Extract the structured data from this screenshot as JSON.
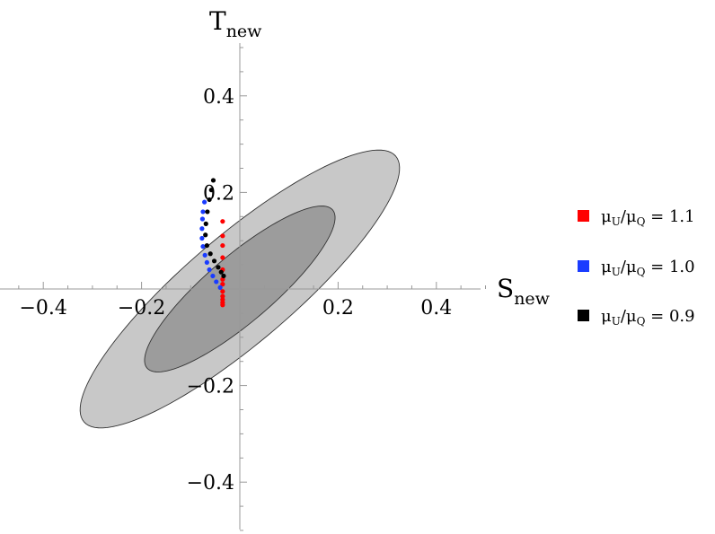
{
  "chart_data": {
    "type": "scatter",
    "x_axis": {
      "label_main": "S",
      "label_sub": "new",
      "range": [
        -0.5,
        0.5
      ],
      "ticks": [
        -0.4,
        -0.2,
        0.2,
        0.4
      ],
      "tick_labels": [
        "−0.4",
        "−0.2",
        "0.2",
        "0.4"
      ]
    },
    "y_axis": {
      "label_main": "T",
      "label_sub": "new",
      "range": [
        -0.5,
        0.5
      ],
      "ticks": [
        -0.4,
        -0.2,
        0.2,
        0.4
      ],
      "tick_labels": [
        "−0.4",
        "−0.2",
        "0.2",
        "0.4"
      ]
    },
    "ellipses": [
      {
        "level": "outer",
        "center": [
          0.0,
          0.0
        ],
        "semi_major": 0.42,
        "semi_minor": 0.11,
        "angle_deg": 41,
        "color": "#c8c8c8"
      },
      {
        "level": "inner",
        "center": [
          0.0,
          0.0
        ],
        "semi_major": 0.25,
        "semi_minor": 0.068,
        "angle_deg": 41,
        "color": "#9c9c9c"
      }
    ],
    "series": [
      {
        "name": "1.1",
        "color": "#ff0000",
        "points": [
          [
            -0.035,
            0.14
          ],
          [
            -0.035,
            0.11
          ],
          [
            -0.035,
            0.09
          ],
          [
            -0.035,
            0.065
          ],
          [
            -0.035,
            0.04
          ],
          [
            -0.035,
            0.02
          ],
          [
            -0.035,
            0.01
          ],
          [
            -0.035,
            -0.005
          ],
          [
            -0.035,
            -0.015
          ],
          [
            -0.035,
            -0.022
          ],
          [
            -0.035,
            -0.028
          ],
          [
            -0.035,
            -0.033
          ]
        ]
      },
      {
        "name": "1.0",
        "color": "#1a3cff",
        "points": [
          [
            -0.072,
            0.18
          ],
          [
            -0.075,
            0.16
          ],
          [
            -0.076,
            0.145
          ],
          [
            -0.077,
            0.125
          ],
          [
            -0.077,
            0.105
          ],
          [
            -0.075,
            0.088
          ],
          [
            -0.071,
            0.07
          ],
          [
            -0.067,
            0.055
          ],
          [
            -0.062,
            0.04
          ],
          [
            -0.055,
            0.027
          ],
          [
            -0.048,
            0.015
          ],
          [
            -0.04,
            0.003
          ]
        ]
      },
      {
        "name": "0.9",
        "color": "#000000",
        "points": [
          [
            -0.054,
            0.225
          ],
          [
            -0.058,
            0.205
          ],
          [
            -0.062,
            0.185
          ],
          [
            -0.066,
            0.16
          ],
          [
            -0.069,
            0.135
          ],
          [
            -0.07,
            0.112
          ],
          [
            -0.067,
            0.09
          ],
          [
            -0.06,
            0.073
          ],
          [
            -0.052,
            0.058
          ],
          [
            -0.044,
            0.045
          ],
          [
            -0.038,
            0.035
          ],
          [
            -0.033,
            0.027
          ]
        ]
      }
    ],
    "legend": {
      "placement": "right",
      "entries": [
        {
          "main1": "μ",
          "sub1": "U",
          "slash": "/",
          "main2": "μ",
          "sub2": "Q",
          "value": " = 1.1",
          "color": "#ff0000"
        },
        {
          "main1": "μ",
          "sub1": "U",
          "slash": "/",
          "main2": "μ",
          "sub2": "Q",
          "value": " = 1.0",
          "color": "#1a3cff"
        },
        {
          "main1": "μ",
          "sub1": "U",
          "slash": "/",
          "main2": "μ",
          "sub2": "Q",
          "value": " = 0.9",
          "color": "#000000"
        }
      ]
    }
  }
}
